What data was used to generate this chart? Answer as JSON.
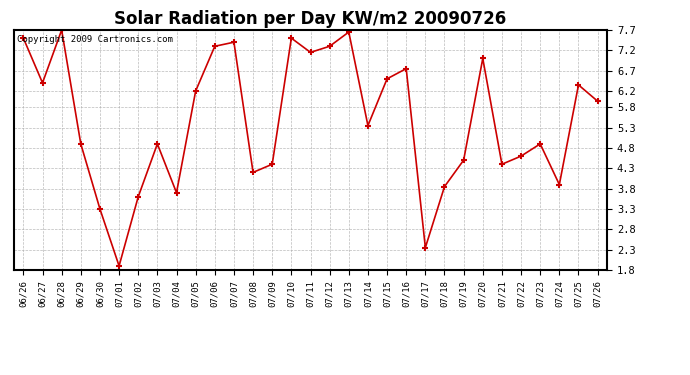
{
  "title": "Solar Radiation per Day KW/m2 20090726",
  "copyright": "Copyright 2009 Cartronics.com",
  "dates": [
    "06/26",
    "06/27",
    "06/28",
    "06/29",
    "06/30",
    "07/01",
    "07/02",
    "07/03",
    "07/04",
    "07/05",
    "07/06",
    "07/07",
    "07/08",
    "07/09",
    "07/10",
    "07/11",
    "07/12",
    "07/13",
    "07/14",
    "07/15",
    "07/16",
    "07/17",
    "07/18",
    "07/19",
    "07/20",
    "07/21",
    "07/22",
    "07/23",
    "07/24",
    "07/25",
    "07/26"
  ],
  "values": [
    7.5,
    6.4,
    7.7,
    4.9,
    3.3,
    1.9,
    3.6,
    4.9,
    3.7,
    6.2,
    7.3,
    7.4,
    4.2,
    4.4,
    7.5,
    7.15,
    7.3,
    7.65,
    5.35,
    6.5,
    6.75,
    2.35,
    3.85,
    4.5,
    7.0,
    4.4,
    4.6,
    4.9,
    3.9,
    6.35,
    5.95
  ],
  "line_color": "#cc0000",
  "marker_color": "#cc0000",
  "bg_color": "#ffffff",
  "grid_color": "#aaaaaa",
  "ylim_min": 1.8,
  "ylim_max": 7.7,
  "yticks": [
    1.8,
    2.3,
    2.8,
    3.3,
    3.8,
    4.3,
    4.8,
    5.3,
    5.8,
    6.2,
    6.7,
    7.2,
    7.7
  ]
}
